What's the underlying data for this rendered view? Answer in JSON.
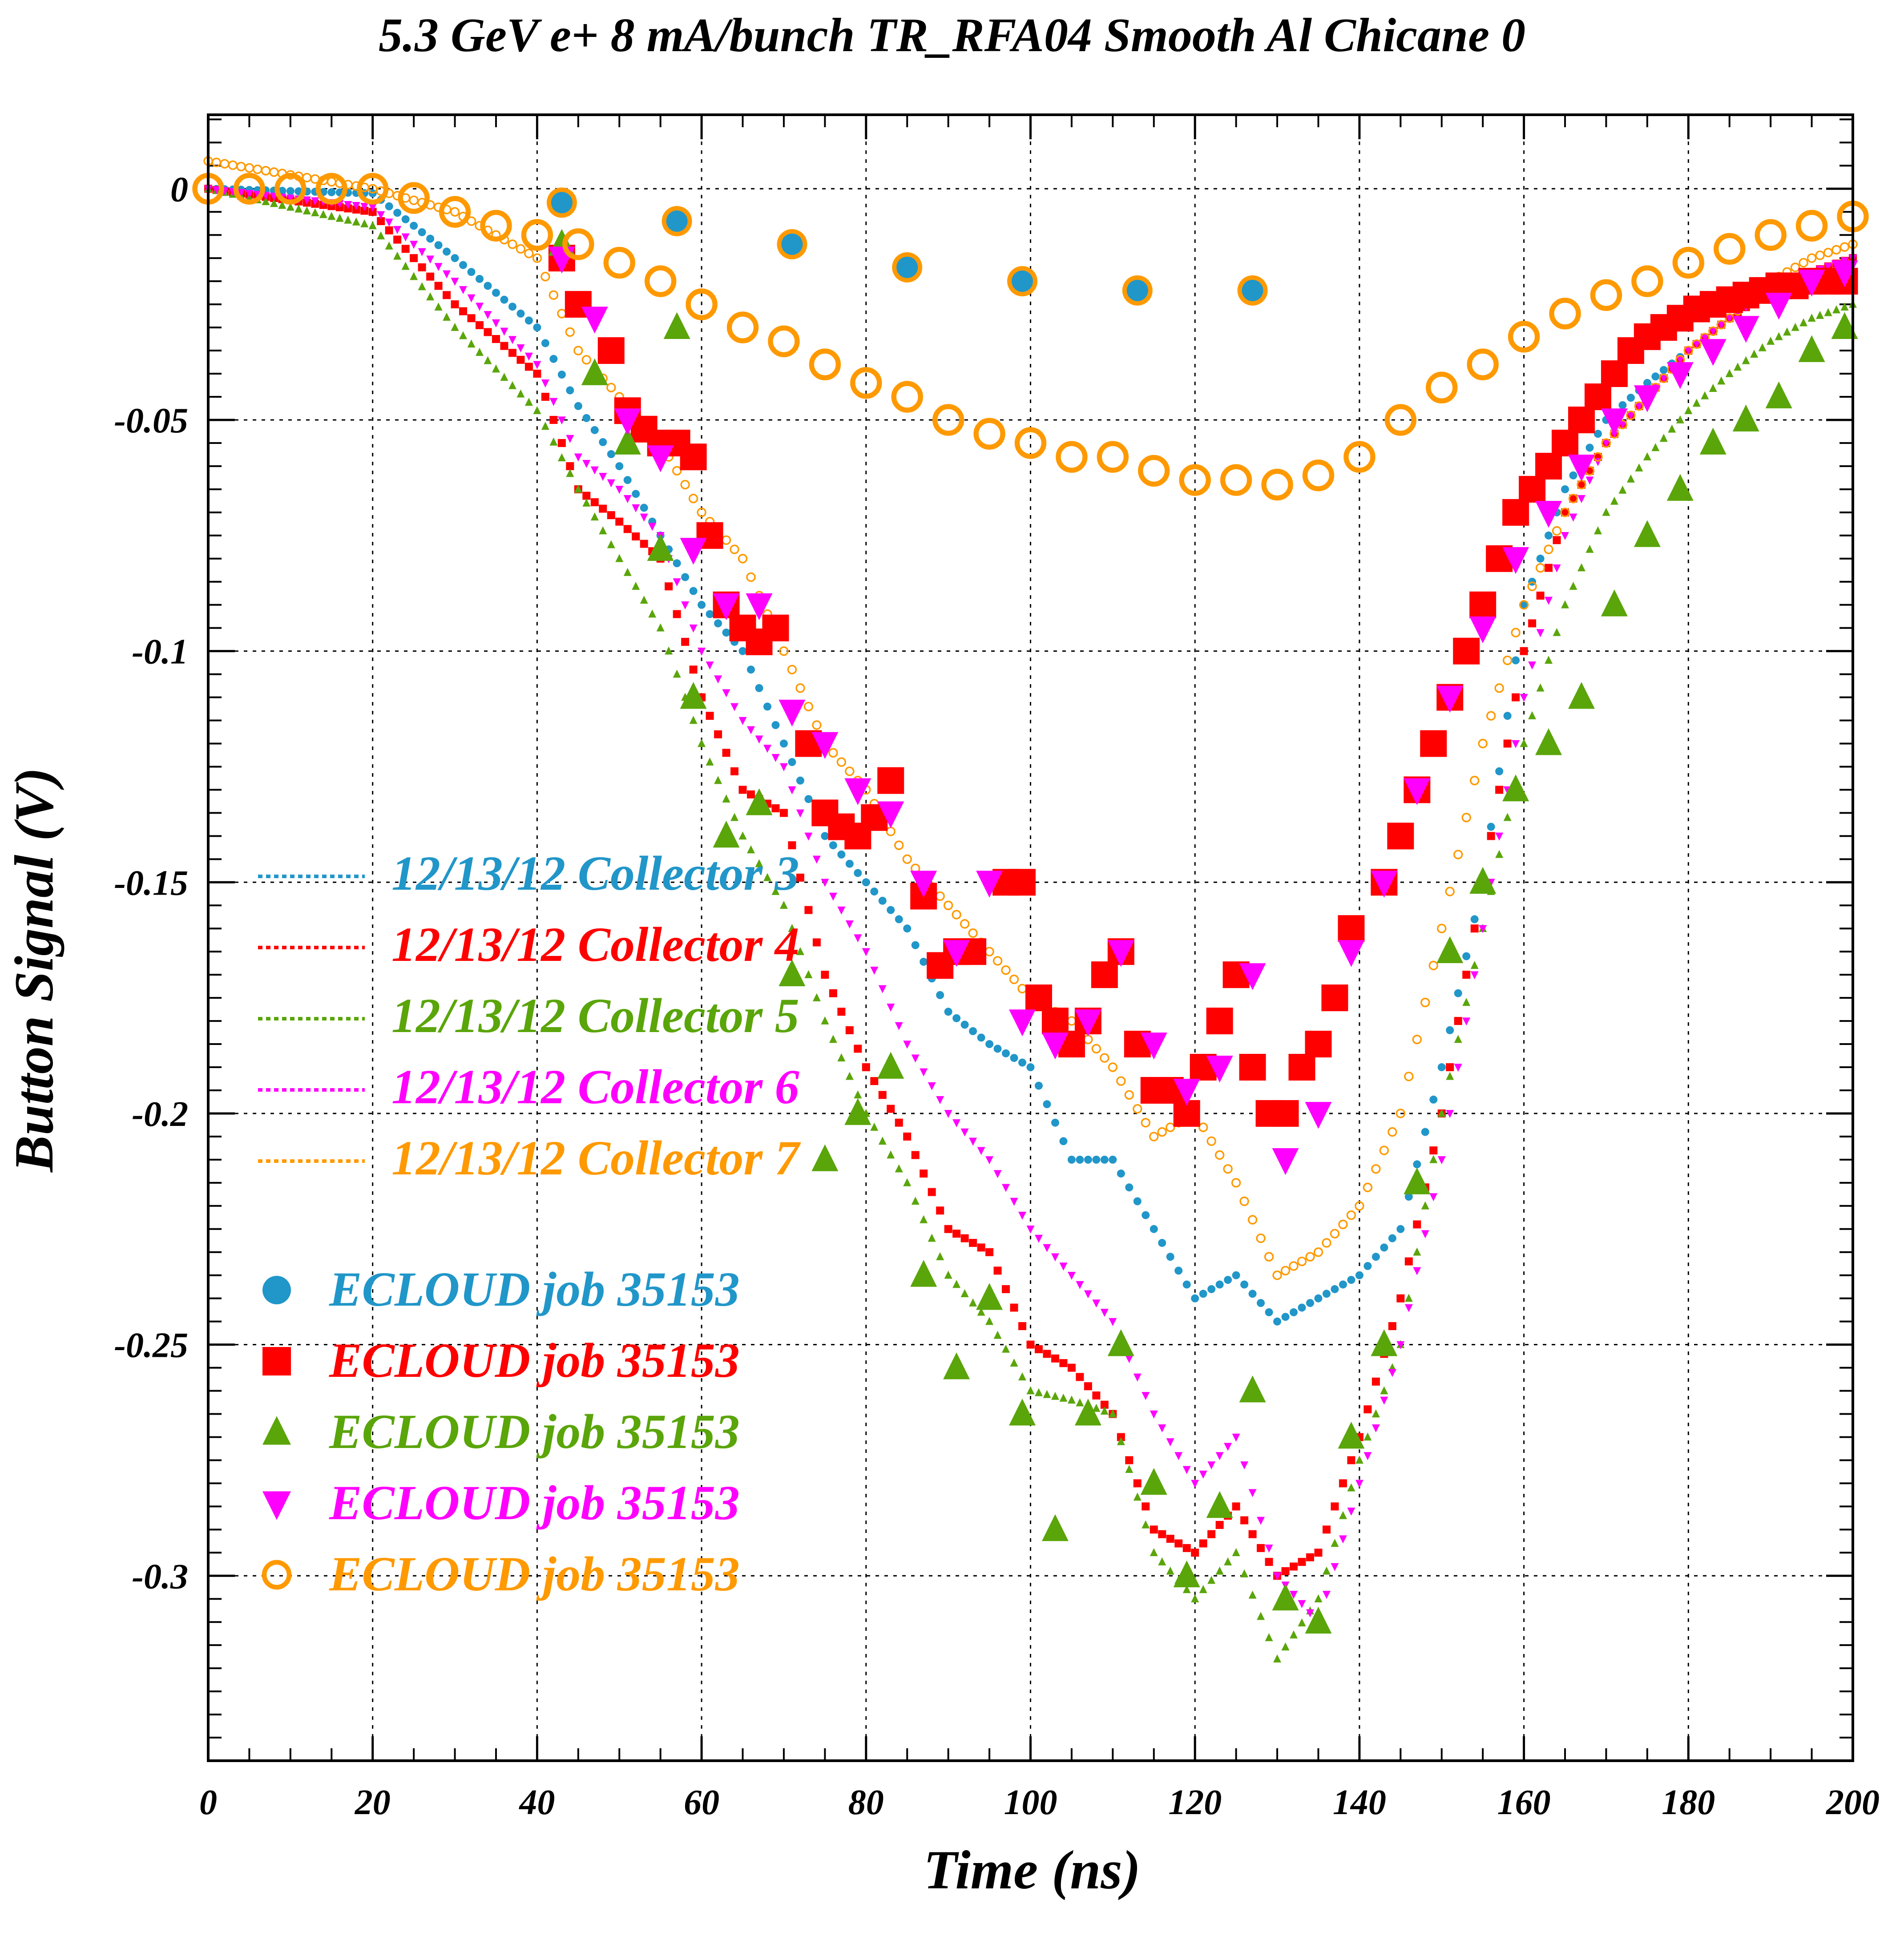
{
  "chart_data": {
    "type": "scatter",
    "title": "5.3 GeV e+ 8 mA/bunch  TR_RFA04 Smooth Al Chicane 0",
    "xlabel": "Time (ns)",
    "ylabel": "Button Signal (V)",
    "xlim": [
      0,
      200
    ],
    "ylim": [
      -0.34,
      0.016
    ],
    "x_ticks": [
      "0",
      "20",
      "40",
      "60",
      "80",
      "100",
      "120",
      "140",
      "160",
      "180",
      "200"
    ],
    "y_ticks": [
      "0",
      "-0.05",
      "-0.1",
      "-0.15",
      "-0.2",
      "-0.25",
      "-0.3"
    ],
    "grid": true,
    "legend_position": "left-center",
    "legend_measured": [
      {
        "label": "12/13/12 Collector 3",
        "color": "#2196c9"
      },
      {
        "label": "12/13/12 Collector 4",
        "color": "#ff0000"
      },
      {
        "label": "12/13/12 Collector 5",
        "color": "#5aa50a"
      },
      {
        "label": "12/13/12 Collector 6",
        "color": "#ff00ff"
      },
      {
        "label": "12/13/12 Collector 7",
        "color": "#ff9900"
      }
    ],
    "legend_sim": [
      {
        "label": "ECLOUD job 35153",
        "color": "#2196c9",
        "marker": "circle"
      },
      {
        "label": "ECLOUD job 35153",
        "color": "#ff0000",
        "marker": "square"
      },
      {
        "label": "ECLOUD job 35153",
        "color": "#5aa50a",
        "marker": "triangle-up"
      },
      {
        "label": "ECLOUD job 35153",
        "color": "#ff00ff",
        "marker": "triangle-down"
      },
      {
        "label": "ECLOUD job 35153",
        "color": "#ff9900",
        "marker": "open-circle"
      }
    ],
    "measured_x": [
      0,
      20,
      30,
      40,
      45,
      50,
      55,
      60,
      65,
      70,
      75,
      80,
      85,
      90,
      95,
      100,
      105,
      110,
      115,
      120,
      125,
      130,
      135,
      140,
      145,
      150,
      155,
      160,
      165,
      170,
      175,
      180,
      185,
      190,
      195,
      200
    ],
    "measured_series": [
      {
        "name": "12/13/12 Collector 3",
        "color": "#2196c9",
        "y": [
          0.0,
          -0.001,
          -0.015,
          -0.03,
          -0.047,
          -0.06,
          -0.075,
          -0.09,
          -0.1,
          -0.12,
          -0.14,
          -0.15,
          -0.16,
          -0.178,
          -0.185,
          -0.19,
          -0.21,
          -0.21,
          -0.225,
          -0.24,
          -0.235,
          -0.245,
          -0.24,
          -0.235,
          -0.225,
          -0.19,
          -0.15,
          -0.09,
          -0.065,
          -0.05,
          -0.042,
          -0.035,
          -0.028,
          -0.022,
          -0.018,
          -0.015
        ]
      },
      {
        "name": "12/13/12 Collector 4",
        "color": "#ff0000",
        "y": [
          0.0,
          -0.005,
          -0.025,
          -0.04,
          -0.065,
          -0.072,
          -0.08,
          -0.11,
          -0.13,
          -0.135,
          -0.17,
          -0.19,
          -0.205,
          -0.225,
          -0.23,
          -0.25,
          -0.255,
          -0.265,
          -0.29,
          -0.295,
          -0.285,
          -0.3,
          -0.295,
          -0.27,
          -0.24,
          -0.2,
          -0.15,
          -0.1,
          -0.07,
          -0.055,
          -0.045,
          -0.035,
          -0.028,
          -0.022,
          -0.018,
          -0.015
        ]
      },
      {
        "name": "12/13/12 Collector 5",
        "color": "#5aa50a",
        "y": [
          0.0,
          -0.008,
          -0.03,
          -0.048,
          -0.065,
          -0.08,
          -0.095,
          -0.12,
          -0.14,
          -0.155,
          -0.18,
          -0.2,
          -0.215,
          -0.235,
          -0.245,
          -0.26,
          -0.262,
          -0.265,
          -0.295,
          -0.305,
          -0.295,
          -0.318,
          -0.305,
          -0.275,
          -0.25,
          -0.2,
          -0.16,
          -0.12,
          -0.09,
          -0.07,
          -0.058,
          -0.048,
          -0.04,
          -0.033,
          -0.028,
          -0.025
        ]
      },
      {
        "name": "12/13/12 Collector 6",
        "color": "#ff00ff",
        "y": [
          0.0,
          -0.004,
          -0.02,
          -0.038,
          -0.058,
          -0.065,
          -0.075,
          -0.1,
          -0.115,
          -0.125,
          -0.15,
          -0.165,
          -0.185,
          -0.2,
          -0.21,
          -0.225,
          -0.235,
          -0.245,
          -0.265,
          -0.28,
          -0.27,
          -0.3,
          -0.31,
          -0.28,
          -0.25,
          -0.21,
          -0.16,
          -0.11,
          -0.075,
          -0.055,
          -0.045,
          -0.035,
          -0.028,
          -0.022,
          -0.018,
          -0.015
        ]
      },
      {
        "name": "12/13/12 Collector 7",
        "color": "#ff9900",
        "y": [
          0.006,
          0.0,
          -0.005,
          -0.015,
          -0.035,
          -0.045,
          -0.055,
          -0.07,
          -0.08,
          -0.1,
          -0.12,
          -0.13,
          -0.145,
          -0.155,
          -0.165,
          -0.175,
          -0.18,
          -0.19,
          -0.205,
          -0.2,
          -0.215,
          -0.235,
          -0.23,
          -0.22,
          -0.2,
          -0.16,
          -0.12,
          -0.09,
          -0.07,
          -0.055,
          -0.045,
          -0.035,
          -0.028,
          -0.02,
          -0.015,
          -0.012
        ]
      }
    ],
    "sim_series": [
      {
        "name": "ECLOUD job 35153",
        "color": "#2196c9",
        "marker": "circle",
        "x": [
          43,
          57,
          71,
          85,
          99,
          113,
          127
        ],
        "y": [
          -0.003,
          -0.007,
          -0.012,
          -0.017,
          -0.02,
          -0.022,
          -0.022
        ]
      },
      {
        "name": "ECLOUD job 35153",
        "color": "#ff0000",
        "marker": "square",
        "x": [
          43,
          45,
          49,
          51,
          53,
          55,
          57,
          59,
          61,
          63,
          65,
          67,
          69,
          73,
          75,
          77,
          79,
          81,
          83,
          87,
          89,
          91,
          93,
          97,
          99,
          101,
          103,
          105,
          107,
          109,
          111,
          113,
          115,
          117,
          119,
          121,
          123,
          125,
          127,
          129,
          131,
          133,
          135,
          137,
          139,
          143,
          145,
          147,
          149,
          151,
          153,
          155,
          157,
          159,
          161,
          163,
          165,
          167,
          169,
          171,
          173,
          175,
          177,
          179,
          181,
          183,
          185,
          187,
          189,
          191,
          193,
          195,
          197,
          199
        ],
        "y": [
          -0.015,
          -0.025,
          -0.035,
          -0.048,
          -0.052,
          -0.055,
          -0.055,
          -0.058,
          -0.075,
          -0.09,
          -0.095,
          -0.098,
          -0.095,
          -0.12,
          -0.135,
          -0.138,
          -0.14,
          -0.136,
          -0.128,
          -0.153,
          -0.168,
          -0.165,
          -0.165,
          -0.15,
          -0.15,
          -0.175,
          -0.18,
          -0.185,
          -0.18,
          -0.17,
          -0.165,
          -0.185,
          -0.195,
          -0.195,
          -0.2,
          -0.19,
          -0.18,
          -0.17,
          -0.19,
          -0.2,
          -0.2,
          -0.19,
          -0.185,
          -0.175,
          -0.16,
          -0.15,
          -0.14,
          -0.13,
          -0.12,
          -0.11,
          -0.1,
          -0.09,
          -0.08,
          -0.07,
          -0.065,
          -0.06,
          -0.055,
          -0.05,
          -0.045,
          -0.04,
          -0.035,
          -0.032,
          -0.03,
          -0.028,
          -0.026,
          -0.025,
          -0.024,
          -0.023,
          -0.022,
          -0.021,
          -0.021,
          -0.02,
          -0.02,
          -0.02
        ]
      },
      {
        "name": "ECLOUD job 35153",
        "color": "#5aa50a",
        "marker": "triangle-up",
        "x": [
          43,
          47,
          51,
          55,
          57,
          59,
          63,
          67,
          71,
          75,
          79,
          83,
          87,
          91,
          95,
          99,
          103,
          107,
          111,
          115,
          119,
          123,
          127,
          131,
          135,
          139,
          143,
          147,
          151,
          155,
          159,
          163,
          167,
          171,
          175,
          179,
          183,
          187,
          191,
          195,
          199
        ],
        "y": [
          -0.012,
          -0.04,
          -0.055,
          -0.078,
          -0.03,
          -0.11,
          -0.14,
          -0.133,
          -0.17,
          -0.21,
          -0.2,
          -0.19,
          -0.235,
          -0.255,
          -0.24,
          -0.265,
          -0.29,
          -0.265,
          -0.25,
          -0.28,
          -0.3,
          -0.285,
          -0.26,
          -0.305,
          -0.31,
          -0.27,
          -0.25,
          -0.215,
          -0.165,
          -0.15,
          -0.13,
          -0.12,
          -0.11,
          -0.09,
          -0.075,
          -0.065,
          -0.055,
          -0.05,
          -0.045,
          -0.035,
          -0.03
        ]
      },
      {
        "name": "ECLOUD job 35153",
        "color": "#ff00ff",
        "marker": "triangle-down",
        "x": [
          43,
          47,
          51,
          55,
          59,
          63,
          67,
          71,
          75,
          79,
          83,
          87,
          91,
          95,
          99,
          103,
          107,
          111,
          115,
          119,
          123,
          127,
          131,
          135,
          139,
          143,
          147,
          151,
          155,
          159,
          163,
          167,
          171,
          175,
          179,
          183,
          187,
          191,
          195,
          199
        ],
        "y": [
          -0.015,
          -0.028,
          -0.05,
          -0.058,
          -0.078,
          -0.09,
          -0.09,
          -0.113,
          -0.12,
          -0.13,
          -0.135,
          -0.15,
          -0.165,
          -0.15,
          -0.18,
          -0.185,
          -0.18,
          -0.165,
          -0.185,
          -0.195,
          -0.19,
          -0.17,
          -0.21,
          -0.2,
          -0.165,
          -0.15,
          -0.13,
          -0.11,
          -0.095,
          -0.08,
          -0.07,
          -0.06,
          -0.05,
          -0.045,
          -0.04,
          -0.035,
          -0.03,
          -0.025,
          -0.02,
          -0.018
        ]
      },
      {
        "name": "ECLOUD job 35153",
        "color": "#ff9900",
        "marker": "open-circle",
        "x": [
          0,
          5,
          10,
          15,
          20,
          25,
          30,
          35,
          40,
          45,
          50,
          55,
          60,
          65,
          70,
          75,
          80,
          85,
          90,
          95,
          100,
          105,
          110,
          115,
          120,
          125,
          130,
          135,
          140,
          145,
          150,
          155,
          160,
          165,
          170,
          175,
          180,
          185,
          190,
          195,
          200
        ],
        "y": [
          0.0,
          0.0,
          0.0,
          0.0,
          0.0,
          -0.002,
          -0.005,
          -0.008,
          -0.01,
          -0.012,
          -0.016,
          -0.02,
          -0.025,
          -0.03,
          -0.033,
          -0.038,
          -0.042,
          -0.045,
          -0.05,
          -0.053,
          -0.055,
          -0.058,
          -0.058,
          -0.061,
          -0.063,
          -0.063,
          -0.064,
          -0.062,
          -0.058,
          -0.05,
          -0.043,
          -0.038,
          -0.032,
          -0.027,
          -0.023,
          -0.02,
          -0.016,
          -0.013,
          -0.01,
          -0.008,
          -0.006
        ]
      }
    ]
  }
}
